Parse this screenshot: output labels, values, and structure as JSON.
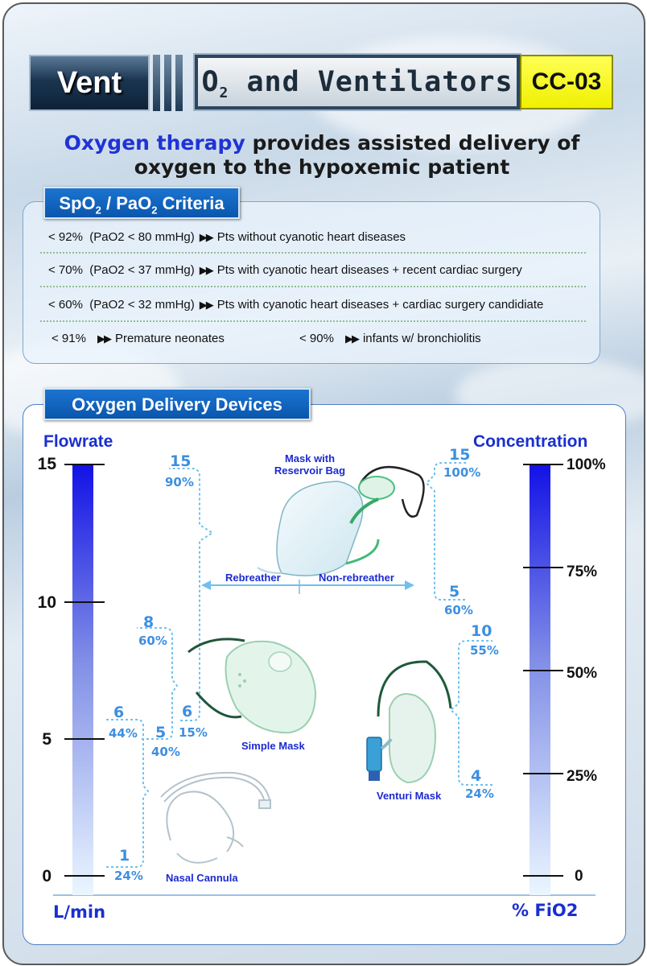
{
  "header": {
    "section": "Vent",
    "title_main": "O",
    "title_sub": "2",
    "title_rest": " and Ventilators",
    "code": "CC-03"
  },
  "intro": {
    "highlight": "Oxygen therapy",
    "line1_rest": " provides assisted delivery of",
    "line2": "oxygen to the hypoxemic patient"
  },
  "criteria": {
    "tag_a": "SpO",
    "tag_a_sub": "2",
    "tag_b": " / PaO",
    "tag_b_sub": "2",
    "tag_c": " Criteria",
    "arrow": "▶▶",
    "rows": [
      {
        "threshold": "< 92%",
        "pao2": "(PaO2 < 80 mmHg)",
        "text": "Pts without cyanotic heart diseases"
      },
      {
        "threshold": "< 70%",
        "pao2": "(PaO2 < 37 mmHg)",
        "text": "Pts with cyanotic heart diseases + recent cardiac surgery"
      },
      {
        "threshold": "< 60%",
        "pao2": "(PaO2 < 32 mmHg)",
        "text": "Pts with cyanotic heart diseases + cardiac surgery candidiate"
      }
    ],
    "last_row": [
      {
        "threshold": "< 91%",
        "text": "Premature neonates"
      },
      {
        "threshold": "< 90%",
        "text": "infants w/ bronchiolitis"
      }
    ]
  },
  "devices": {
    "tag": "Oxygen Delivery Devices",
    "left_axis": {
      "title": "Flowrate",
      "unit": "L/min",
      "ticks": [
        "15",
        "10",
        "5",
        "0"
      ]
    },
    "right_axis": {
      "title": "Concentration",
      "unit": "% FiO2",
      "ticks": [
        "100%",
        "75%",
        "50%",
        "25%",
        "0"
      ]
    },
    "nasal_cannula": {
      "label": "Nasal Cannula",
      "min_flow": "1",
      "min_fio2": "24%",
      "max_flow": "6",
      "max_fio2": "44%"
    },
    "simple_mask": {
      "label": "Simple Mask",
      "min_flow": "5",
      "min_fio2": "40%",
      "max_flow": "8",
      "max_fio2": "60%"
    },
    "rebreather": {
      "label": "Rebreather",
      "min_flow": "6",
      "min_fio2": "15%",
      "max_flow": "15",
      "max_fio2": "90%"
    },
    "reservoir_mask": {
      "label_line1": "Mask with",
      "label_line2": "Reservoir Bag",
      "min_flow": "5",
      "min_fio2": "60%",
      "max_flow": "15",
      "max_fio2": "100%"
    },
    "non_rebreather": {
      "label": "Non-rebreather"
    },
    "venturi_mask": {
      "label": "Venturi Mask",
      "min_flow": "4",
      "min_fio2": "24%",
      "max_flow": "10",
      "max_fio2": "55%"
    },
    "colors": {
      "axis_blue": "#1a2fcf",
      "range_blue": "#3d8fe0",
      "bar_top": "#1414e6",
      "bar_bottom": "#eaf6ff"
    }
  }
}
